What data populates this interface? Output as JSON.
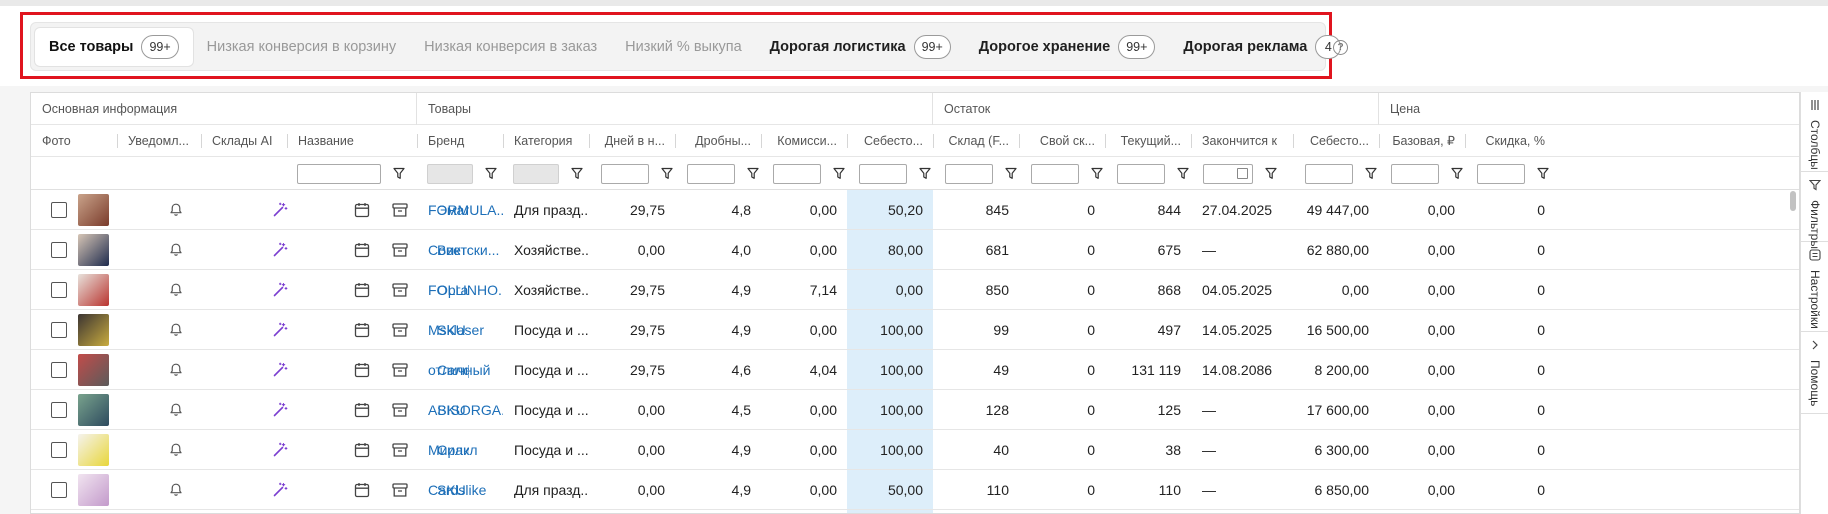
{
  "tabs": [
    {
      "label": "Все товары",
      "badge": "99+",
      "state": "active"
    },
    {
      "label": "Низкая конверсия в корзину",
      "badge": null,
      "state": "muted"
    },
    {
      "label": "Низкая конверсия в заказ",
      "badge": null,
      "state": "muted"
    },
    {
      "label": "Низкий % выкупа",
      "badge": null,
      "state": "muted"
    },
    {
      "label": "Дорогая логистика",
      "badge": "99+",
      "state": "bold"
    },
    {
      "label": "Дорогое хранение",
      "badge": "99+",
      "state": "bold"
    },
    {
      "label": "Дорогая реклама",
      "badge": "4",
      "state": "bold"
    }
  ],
  "help_glyph": "?",
  "groups": [
    "Основная информация",
    "Товары",
    "Остаток",
    "Цена"
  ],
  "columns": [
    "Фото",
    "Уведомл...",
    "Склады AI",
    "Название",
    "Бренд",
    "Категория",
    "Дней в н...",
    "Дробны...",
    "Комисси...",
    "Себесто...",
    "Склад (F...",
    "Свой ск...",
    "Текущий...",
    "Закончится к",
    "Себесто...",
    "Базовая, ₽",
    "Скидка, %"
  ],
  "rows": [
    {
      "name": "Эмаль",
      "brand": "FORMULA...",
      "category": "Для празд...",
      "days": "29,75",
      "fraction": "4,8",
      "commission": "0,00",
      "cost": "50,20",
      "warehouse": "845",
      "own": "0",
      "current": "844",
      "ends": "27.04.2025",
      "cost2": "49 447,00",
      "base": "0,00",
      "discount": "0"
    },
    {
      "name": "Виктор",
      "brand": "Советски...",
      "category": "Хозяйстве...",
      "days": "0,00",
      "fraction": "4,0",
      "commission": "0,00",
      "cost": "80,00",
      "warehouse": "681",
      "own": "0",
      "current": "675",
      "ends": "—",
      "cost2": "62 880,00",
      "base": "0,00",
      "discount": "0"
    },
    {
      "name": "Органа",
      "brand": "FOLLINHO...",
      "category": "Хозяйстве...",
      "days": "29,75",
      "fraction": "4,9",
      "commission": "7,14",
      "cost": "0,00",
      "warehouse": "850",
      "own": "0",
      "current": "868",
      "ends": "04.05.2025",
      "cost2": "0,00",
      "base": "0,00",
      "discount": "0"
    },
    {
      "name": "SKU 70",
      "brand": "Msklaser",
      "category": "Посуда и ...",
      "days": "29,75",
      "fraction": "4,9",
      "commission": "0,00",
      "cost": "100,00",
      "warehouse": "99",
      "own": "0",
      "current": "497",
      "ends": "14.05.2025",
      "cost2": "16 500,00",
      "base": "0,00",
      "discount": "0"
    },
    {
      "name": "Салфе",
      "brand": "отличный",
      "category": "Посуда и ...",
      "days": "29,75",
      "fraction": "4,6",
      "commission": "4,04",
      "cost": "100,00",
      "warehouse": "49",
      "own": "0",
      "current": "131 119",
      "ends": "14.08.2086",
      "cost2": "8 200,00",
      "base": "0,00",
      "discount": "0"
    },
    {
      "name": "SKU 13",
      "brand": "ABISORGA...",
      "category": "Посуда и ...",
      "days": "0,00",
      "fraction": "4,5",
      "commission": "0,00",
      "cost": "100,00",
      "warehouse": "128",
      "own": "0",
      "current": "125",
      "ends": "—",
      "cost2": "17 600,00",
      "base": "0,00",
      "discount": "0"
    },
    {
      "name": "Силик",
      "brand": "Миракл",
      "category": "Посуда и ...",
      "days": "0,00",
      "fraction": "4,9",
      "commission": "0,00",
      "cost": "100,00",
      "warehouse": "40",
      "own": "0",
      "current": "38",
      "ends": "—",
      "cost2": "6 300,00",
      "base": "0,00",
      "discount": "0"
    },
    {
      "name": "SKU 18",
      "brand": "Cardslike",
      "category": "Для празд...",
      "days": "0,00",
      "fraction": "4,9",
      "commission": "0,00",
      "cost": "50,00",
      "warehouse": "110",
      "own": "0",
      "current": "110",
      "ends": "—",
      "cost2": "6 850,00",
      "base": "0,00",
      "discount": "0"
    }
  ],
  "side_panel": [
    {
      "label": "Столбцы",
      "icon": "columns-icon"
    },
    {
      "label": "Фильтры",
      "icon": "filter-icon"
    },
    {
      "label": "Настройки",
      "icon": "settings-icon"
    },
    {
      "label": "Помощь",
      "icon": "help-chevron-icon"
    }
  ],
  "colors": {
    "highlight": "#e0141e",
    "link": "#1d6fb8",
    "cost_column_bg": "#ddeefa",
    "magic_icon": "#7b3fd0"
  }
}
